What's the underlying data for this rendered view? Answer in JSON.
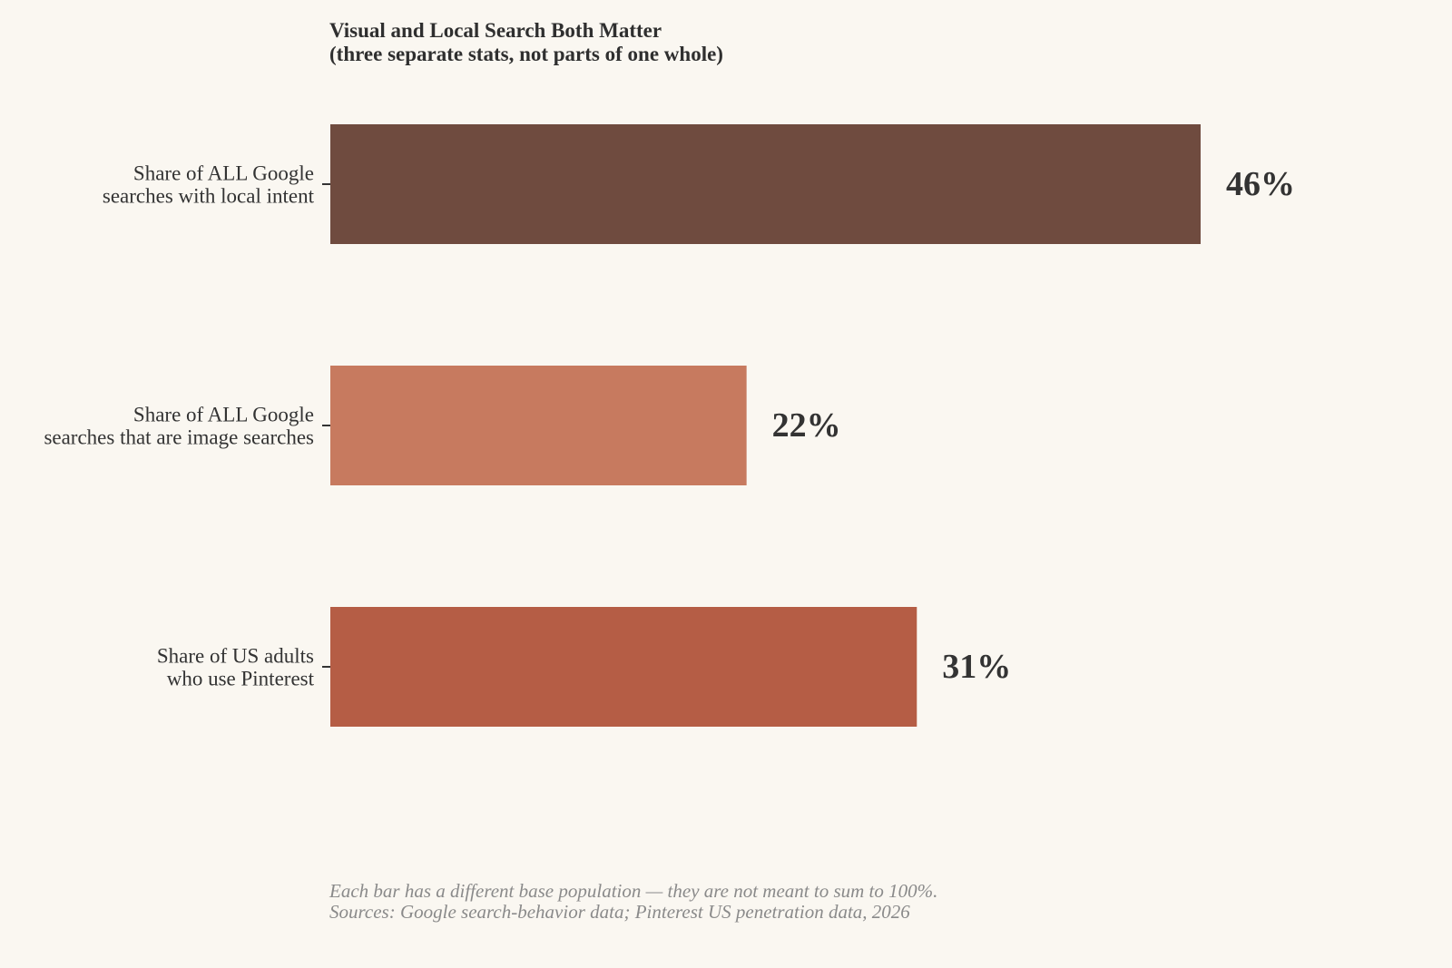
{
  "chart_data": {
    "type": "bar",
    "orientation": "horizontal",
    "title": "Visual and Local Search Both Matter",
    "subtitle": "(three separate stats, not parts of one whole)",
    "categories": [
      [
        "Share of ALL Google",
        "searches with local intent"
      ],
      [
        "Share of ALL Google",
        "searches that are image searches"
      ],
      [
        "Share of US adults",
        "who use Pinterest"
      ]
    ],
    "values": [
      46,
      22,
      31
    ],
    "data_labels": [
      "46%",
      "22%",
      "31%"
    ],
    "colors": [
      "#6f4b3f",
      "#c77a5f",
      "#b55d45"
    ],
    "xlim": [
      0,
      46
    ],
    "grid": false,
    "legend": "none",
    "xlabel": "",
    "ylabel": ""
  },
  "footnote": {
    "line1": "Each bar has a different base population — they are not meant to sum to 100%.",
    "line2": "Sources: Google search-behavior data; Pinterest US penetration data, 2026"
  },
  "colors": {
    "background": "#faf7f1",
    "text": "#333333",
    "footnote": "#8a8a8a"
  }
}
